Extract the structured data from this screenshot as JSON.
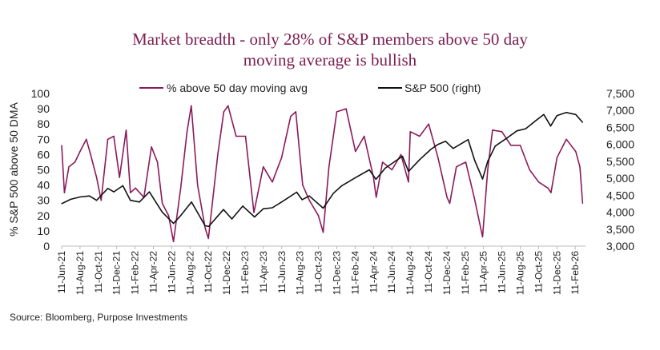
{
  "chart_data": {
    "type": "line",
    "title": "Market breadth - only 28% of S&P members above 50 day moving average is bullish",
    "title_lines": [
      "Market breadth - only 28% of S&P members above 50 day",
      "moving average is bullish"
    ],
    "ylabel": "% S&P 500 above 50 DMA",
    "ylim": [
      0,
      100
    ],
    "yticks": [
      "0",
      "10",
      "20",
      "30",
      "40",
      "50",
      "60",
      "70",
      "80",
      "90",
      "100"
    ],
    "y2lim": [
      3000,
      7500
    ],
    "y2ticks": [
      "3,000",
      "3,500",
      "4,000",
      "4,500",
      "5,000",
      "5,500",
      "6,000",
      "6,500",
      "7,000",
      "7,500"
    ],
    "xticks": [
      "11-Jun-21",
      "11-Aug-21",
      "11-Oct-21",
      "11-Dec-21",
      "11-Feb-22",
      "11-Apr-22",
      "11-Jun-22",
      "11-Aug-22",
      "11-Oct-22",
      "11-Dec-22",
      "11-Feb-23",
      "11-Apr-23",
      "11-Jun-23",
      "11-Aug-23",
      "11-Oct-23",
      "11-Dec-23",
      "11-Feb-24",
      "11-Apr-24",
      "11-Jun-24",
      "11-Aug-24",
      "11-Oct-24",
      "11-Dec-24",
      "11-Feb-25",
      "11-Apr-25",
      "11-Jun-25",
      "11-Aug-25",
      "11-Oct-25",
      "11-Dec-25",
      "11-Feb-26"
    ],
    "grid": false,
    "legend": "top",
    "colors": {
      "pct": "#8b1a5c",
      "spx": "#111111",
      "title": "#7d1d52"
    },
    "series": [
      {
        "name": "% above 50 day moving avg",
        "axis": "left",
        "x": [
          "2021-06-11",
          "2021-06-20",
          "2021-07-05",
          "2021-07-25",
          "2021-08-11",
          "2021-09-01",
          "2021-09-15",
          "2021-10-05",
          "2021-10-20",
          "2021-11-11",
          "2021-12-01",
          "2021-12-20",
          "2022-01-11",
          "2022-01-25",
          "2022-02-11",
          "2022-03-11",
          "2022-04-05",
          "2022-04-25",
          "2022-05-11",
          "2022-06-01",
          "2022-06-17",
          "2022-07-11",
          "2022-08-01",
          "2022-08-15",
          "2022-09-05",
          "2022-09-30",
          "2022-10-11",
          "2022-11-11",
          "2022-12-01",
          "2022-12-15",
          "2023-01-11",
          "2023-02-11",
          "2023-03-11",
          "2023-04-11",
          "2023-05-11",
          "2023-06-11",
          "2023-07-11",
          "2023-07-28",
          "2023-08-20",
          "2023-09-11",
          "2023-10-11",
          "2023-10-27",
          "2023-11-15",
          "2023-12-11",
          "2024-01-11",
          "2024-02-11",
          "2024-03-11",
          "2024-04-11",
          "2024-04-20",
          "2024-05-11",
          "2024-06-11",
          "2024-07-11",
          "2024-08-05",
          "2024-08-11",
          "2024-09-11",
          "2024-10-11",
          "2024-11-11",
          "2024-12-11",
          "2024-12-20",
          "2025-01-11",
          "2025-02-11",
          "2025-03-11",
          "2025-04-08",
          "2025-04-25",
          "2025-05-11",
          "2025-06-11",
          "2025-07-11",
          "2025-08-11",
          "2025-09-11",
          "2025-10-11",
          "2025-11-11",
          "2025-11-21",
          "2025-12-11",
          "2026-01-11",
          "2026-02-11",
          "2026-02-25",
          "2026-03-06"
        ],
        "values": [
          66,
          35,
          52,
          55,
          62,
          70,
          60,
          45,
          30,
          70,
          72,
          45,
          76,
          35,
          38,
          32,
          65,
          55,
          28,
          20,
          3,
          38,
          75,
          92,
          40,
          12,
          5,
          60,
          88,
          92,
          72,
          72,
          22,
          52,
          42,
          58,
          85,
          88,
          40,
          30,
          20,
          9,
          52,
          88,
          90,
          62,
          72,
          45,
          32,
          55,
          50,
          60,
          42,
          75,
          72,
          80,
          58,
          32,
          28,
          52,
          55,
          32,
          6,
          50,
          76,
          75,
          66,
          66,
          50,
          42,
          38,
          35,
          58,
          70,
          62,
          52,
          28
        ]
      },
      {
        "name": "S&P 500 (right)",
        "axis": "right",
        "x": [
          "2021-06-11",
          "2021-07-11",
          "2021-08-11",
          "2021-09-11",
          "2021-10-05",
          "2021-11-11",
          "2021-12-01",
          "2021-12-31",
          "2022-01-25",
          "2022-02-24",
          "2022-03-29",
          "2022-05-11",
          "2022-06-17",
          "2022-07-11",
          "2022-08-16",
          "2022-09-30",
          "2022-10-12",
          "2022-11-30",
          "2022-12-28",
          "2023-02-02",
          "2023-03-13",
          "2023-04-11",
          "2023-05-11",
          "2023-06-11",
          "2023-07-31",
          "2023-08-18",
          "2023-09-11",
          "2023-10-27",
          "2023-11-30",
          "2023-12-28",
          "2024-02-11",
          "2024-03-28",
          "2024-04-19",
          "2024-05-20",
          "2024-07-16",
          "2024-08-05",
          "2024-09-11",
          "2024-10-18",
          "2024-11-11",
          "2024-12-06",
          "2024-12-31",
          "2025-02-19",
          "2025-03-13",
          "2025-04-08",
          "2025-04-25",
          "2025-05-20",
          "2025-06-30",
          "2025-07-31",
          "2025-08-29",
          "2025-09-30",
          "2025-10-28",
          "2025-11-20",
          "2025-12-11",
          "2026-01-11",
          "2026-02-11",
          "2026-03-06"
        ],
        "values": [
          4250,
          4380,
          4450,
          4480,
          4350,
          4700,
          4600,
          4780,
          4350,
          4300,
          4600,
          4000,
          3670,
          3900,
          4300,
          3600,
          3580,
          4080,
          3800,
          4180,
          3860,
          4100,
          4130,
          4300,
          4590,
          4370,
          4480,
          4120,
          4560,
          4780,
          5020,
          5250,
          4970,
          5300,
          5650,
          5200,
          5550,
          5850,
          6000,
          6090,
          5880,
          6140,
          5520,
          4980,
          5500,
          5950,
          6200,
          6400,
          6460,
          6690,
          6880,
          6540,
          6850,
          6940,
          6880,
          6650
        ]
      }
    ]
  },
  "source": "Source: Bloomberg, Purpose Investments"
}
